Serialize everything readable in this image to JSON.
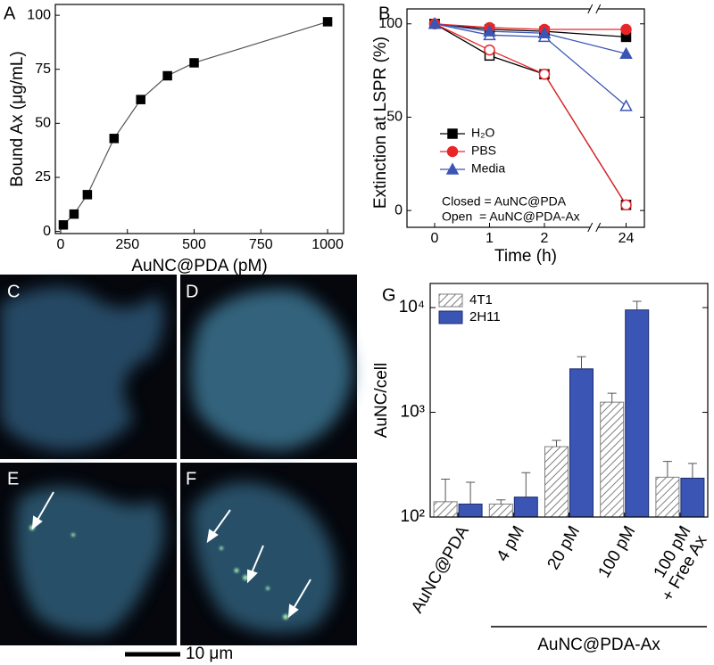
{
  "chart_data": [
    {
      "panel": "A",
      "type": "line",
      "x_label": "AuNC@PDA (pM)",
      "y_label": "Bound Ax (μg/mL)",
      "x": [
        10,
        50,
        100,
        200,
        300,
        400,
        500,
        1000
      ],
      "values": [
        3,
        8,
        17,
        43,
        61,
        72,
        78,
        97
      ],
      "color": "#000000",
      "line_color": "#555555",
      "marker": "square",
      "xlim": [
        -20,
        1060
      ],
      "ylim": [
        -1,
        105
      ],
      "xticks": [
        0,
        250,
        500,
        750,
        1000
      ],
      "yticks": [
        0,
        25,
        50,
        75,
        100
      ]
    },
    {
      "panel": "B",
      "type": "line",
      "x_label": "Time (h)",
      "y_label": "Extinction at LSPR (%)",
      "categories": [
        "0",
        "1",
        "2",
        "24"
      ],
      "axis_break_before": 3,
      "ylim": [
        -9,
        108
      ],
      "yticks": [
        0,
        50,
        100
      ],
      "series": [
        {
          "name": "H₂O",
          "color": "#000000",
          "marker": "square",
          "values": [
            100,
            97,
            96,
            93
          ],
          "open_values": [
            100,
            83,
            73,
            3
          ]
        },
        {
          "name": "PBS",
          "color": "#e8262a",
          "marker": "circle",
          "values": [
            100,
            98,
            97,
            97
          ],
          "open_values": [
            100,
            86,
            73,
            3
          ]
        },
        {
          "name": "Media",
          "color": "#3b55b5",
          "marker": "triangle",
          "values": [
            100,
            96,
            95,
            84
          ],
          "open_values": [
            100,
            94,
            93,
            56
          ]
        }
      ],
      "annotations": [
        "Closed = AuNC@PDA",
        "Open  = AuNC@PDA-Ax"
      ]
    },
    {
      "panel": "G",
      "type": "bar",
      "y_scale": "log",
      "y_label": "AuNC/cell",
      "legend": "upper left",
      "categories": [
        "AuNC@PDA",
        "4 pM",
        "20 pM",
        "100 pM",
        "100 pM\n+ Free Ax"
      ],
      "group_label": "AuNC@PDA-Ax",
      "ylim": [
        100,
        17000
      ],
      "yticks": [
        {
          "value": 100,
          "label": "10²"
        },
        {
          "value": 1000,
          "label": "10³"
        },
        {
          "value": 10000,
          "label": "10⁴"
        }
      ],
      "series": [
        {
          "name": "4T1",
          "color": "#7f7f7f",
          "hatch": true,
          "values": [
            140,
            133,
            470,
            1250,
            240
          ],
          "errors": [
            90,
            13,
            70,
            270,
            100
          ]
        },
        {
          "name": "2H11",
          "color": "#3b55b5",
          "hatch": false,
          "values": [
            133,
            155,
            2600,
            9500,
            235
          ],
          "errors": [
            82,
            110,
            800,
            2000,
            90
          ]
        }
      ]
    }
  ],
  "images": {
    "panels": [
      "C",
      "D",
      "E",
      "F"
    ],
    "scale_bar": "10 μm"
  }
}
